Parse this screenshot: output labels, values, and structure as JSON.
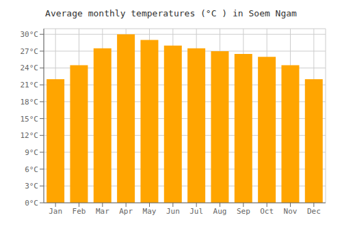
{
  "chart_data": {
    "type": "bar",
    "title": "Average monthly temperatures (°C ) in Soem Ngam",
    "categories": [
      "Jan",
      "Feb",
      "Mar",
      "Apr",
      "May",
      "Jun",
      "Jul",
      "Aug",
      "Sep",
      "Oct",
      "Nov",
      "Dec"
    ],
    "values": [
      22,
      24.5,
      27.5,
      30,
      29,
      28,
      27.5,
      27,
      26.5,
      26,
      24.5,
      22
    ],
    "color": "#FFA500",
    "ylim": [
      0,
      31
    ],
    "yticks": [
      {
        "value": 0,
        "label": "0°C"
      },
      {
        "value": 3,
        "label": "3°C"
      },
      {
        "value": 6,
        "label": "6°C"
      },
      {
        "value": 9,
        "label": "9°C"
      },
      {
        "value": 12,
        "label": "12°C"
      },
      {
        "value": 15,
        "label": "15°C"
      },
      {
        "value": 18,
        "label": "18°C"
      },
      {
        "value": 21,
        "label": "21°C"
      },
      {
        "value": 24,
        "label": "24°C"
      },
      {
        "value": 27,
        "label": "27°C"
      },
      {
        "value": 30,
        "label": "30°C"
      }
    ],
    "grid": true
  }
}
